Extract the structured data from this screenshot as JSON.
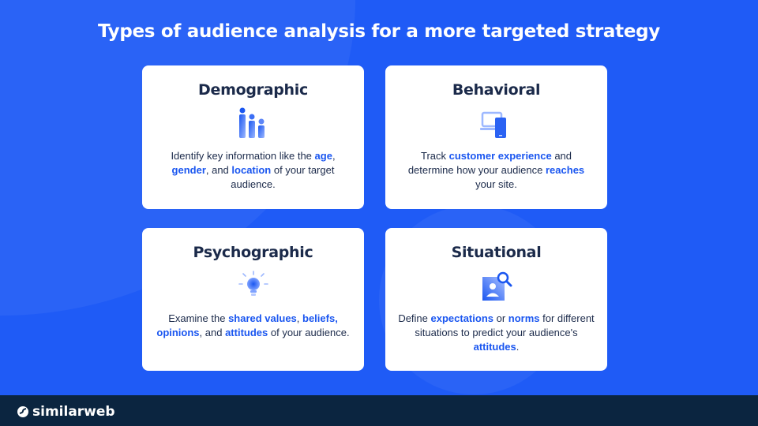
{
  "title": "Types of audience analysis for a more targeted strategy",
  "colors": {
    "background": "#1f5bf6",
    "highlight": "#1a56f0",
    "footer": "#0b2540",
    "card_title": "#1b2a4a"
  },
  "cards": [
    {
      "title": "Demographic",
      "icon": "people-bars-icon",
      "text": [
        "Identify key information like the ",
        "age",
        ", ",
        "gender",
        ", and ",
        "location",
        " of your target audience."
      ]
    },
    {
      "title": "Behavioral",
      "icon": "laptop-phone-icon",
      "text": [
        "Track ",
        "customer experience",
        " and determine how your audience ",
        "reaches",
        " your site."
      ]
    },
    {
      "title": "Psychographic",
      "icon": "lightbulb-icon",
      "text": [
        "Examine the ",
        "shared values",
        ", ",
        "beliefs, opinions",
        ", and ",
        "attitudes",
        " of your audience."
      ]
    },
    {
      "title": "Situational",
      "icon": "person-search-icon",
      "text": [
        "Define ",
        "expectations",
        " or ",
        "norms",
        " for different situations to predict your audience's ",
        "attitudes",
        "."
      ]
    }
  ],
  "footer": {
    "brand": "similarweb"
  }
}
